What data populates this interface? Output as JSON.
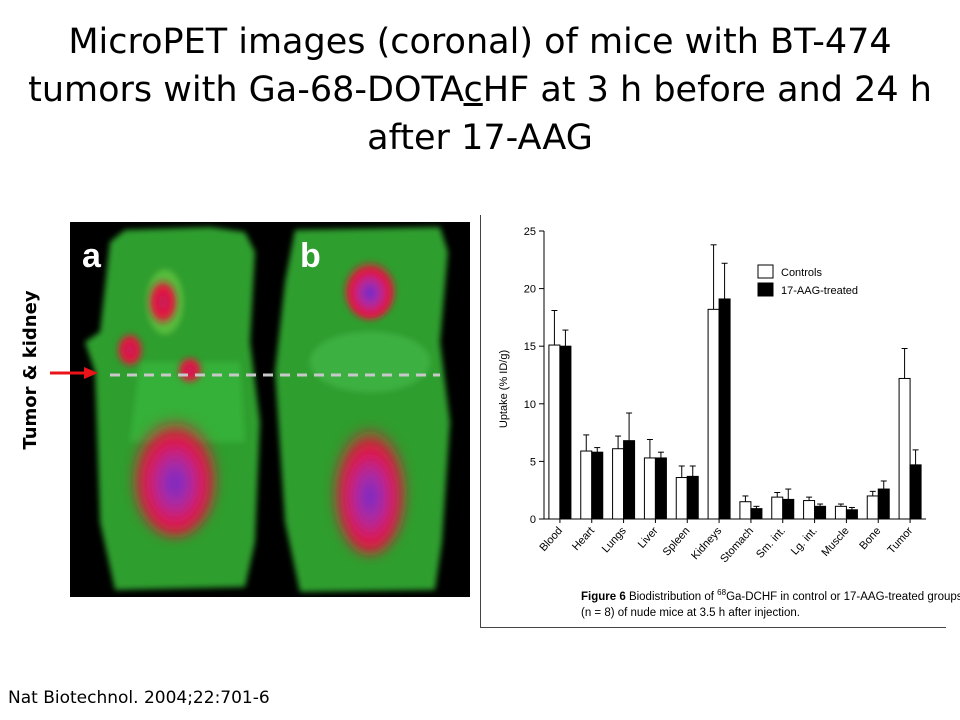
{
  "title": {
    "part1": "MicroPET images (coronal)  of mice with BT-474 tumors with Ga-68-DOTA",
    "underlined": "c",
    "part2": "HF at 3 h before and 24 h after 17-AAG"
  },
  "pet_image": {
    "panel_a_label": "a",
    "panel_b_label": "b"
  },
  "annotation": {
    "label": "Tumor & kidney",
    "arrow_color": "#e8141a"
  },
  "colors": {
    "controls_fill": "#ffffff",
    "treated_fill": "#000000",
    "pet_green": "#2f9e2f",
    "pet_red": "#e8123a",
    "pet_purple": "#8a2cc8"
  },
  "chart_data": {
    "type": "bar",
    "ylabel": "Uptake (% ID/g)",
    "ylim": [
      0,
      25
    ],
    "yticks": [
      0,
      5,
      10,
      15,
      20,
      25
    ],
    "categories": [
      "Blood",
      "Heart",
      "Lungs",
      "Liver",
      "Spleen",
      "Kidneys",
      "Stomach",
      "Sm. int.",
      "Lg. int.",
      "Muscle",
      "Bone",
      "Tumor"
    ],
    "series": [
      {
        "name": "Controls",
        "color": "#ffffff",
        "values": [
          15.1,
          5.9,
          6.1,
          5.3,
          3.6,
          18.2,
          1.5,
          1.9,
          1.6,
          1.1,
          2.0,
          12.2
        ],
        "errors": [
          3.0,
          1.4,
          1.1,
          1.6,
          1.0,
          5.6,
          0.5,
          0.4,
          0.3,
          0.2,
          0.4,
          2.6
        ]
      },
      {
        "name": "17-AAG-treated",
        "color": "#000000",
        "values": [
          15.0,
          5.8,
          6.8,
          5.3,
          3.7,
          19.1,
          0.9,
          1.7,
          1.1,
          0.8,
          2.6,
          4.7
        ],
        "errors": [
          1.4,
          0.4,
          2.4,
          0.5,
          0.9,
          3.1,
          0.2,
          0.9,
          0.2,
          0.2,
          0.7,
          1.3
        ]
      }
    ],
    "legend_position": "top-right",
    "grid": false,
    "caption": {
      "figure_label": "Figure 6",
      "pre_sup": "Biodistribution of ",
      "sup": "68",
      "post_sup": "Ga-DCHF in control or 17-AAG-treated groups",
      "line2": "(n = 8) of nude mice at 3.5 h after injection."
    }
  },
  "citation": "Nat Biotechnol. 2004;22:701-6"
}
